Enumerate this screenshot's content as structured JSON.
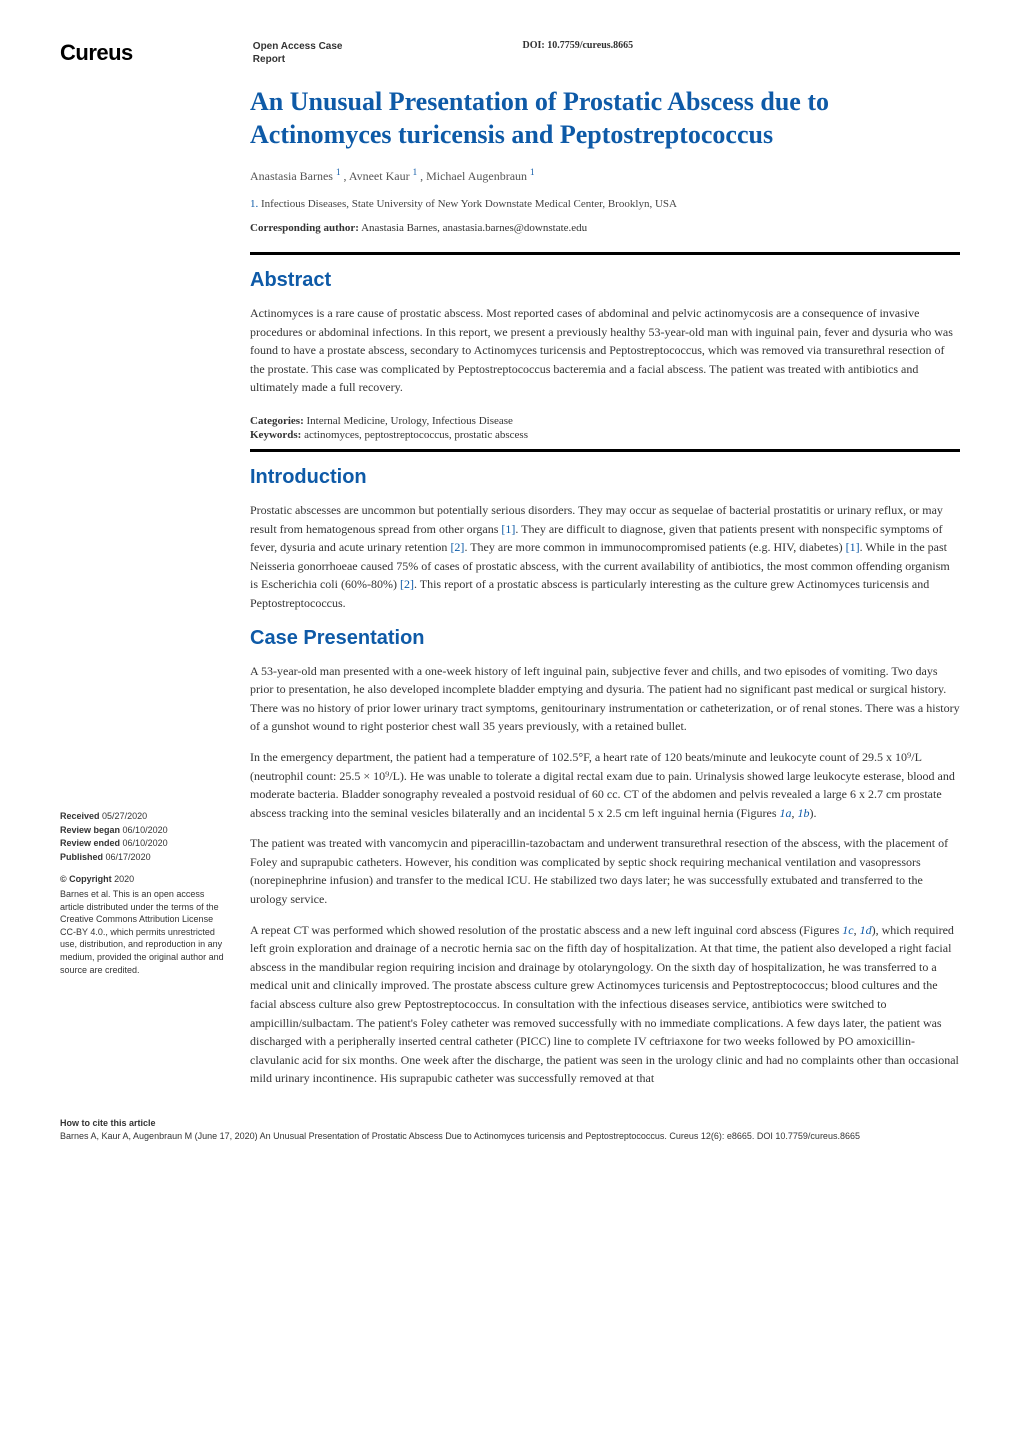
{
  "header": {
    "logo": "Cureus",
    "article_type_line1": "Open Access Case",
    "article_type_line2": "Report",
    "doi_label": "DOI:",
    "doi_value": "10.7759/cureus.8665"
  },
  "article": {
    "title": "An Unusual Presentation of Prostatic Abscess due to Actinomyces turicensis and Peptostreptococcus",
    "authors_html": "Anastasia Barnes ¹ , Avneet Kaur ¹ , Michael Augenbraun ¹",
    "author1": "Anastasia Barnes",
    "author2": "Avneet Kaur",
    "author3": "Michael Augenbraun",
    "sup": "1",
    "affiliation_num": "1.",
    "affiliation_text": "Infectious Diseases, State University of New York Downstate Medical Center, Brooklyn, USA",
    "corresponding_label": "Corresponding author:",
    "corresponding_value": "Anastasia Barnes, anastasia.barnes@downstate.edu"
  },
  "abstract": {
    "heading": "Abstract",
    "body": "Actinomyces is a rare cause of prostatic abscess. Most reported cases of abdominal and pelvic actinomycosis are a consequence of invasive procedures or abdominal infections. In this report, we present a previously healthy 53-year-old man with inguinal pain, fever and dysuria who was found to have a prostate abscess, secondary to Actinomyces turicensis and Peptostreptococcus, which was removed via transurethral resection of the prostate. This case was complicated by Peptostreptococcus bacteremia and a facial abscess. The patient was treated with antibiotics and ultimately made a full recovery."
  },
  "meta": {
    "categories_label": "Categories:",
    "categories_value": "Internal Medicine, Urology, Infectious Disease",
    "keywords_label": "Keywords:",
    "keywords_value": "actinomyces, peptostreptococcus, prostatic abscess"
  },
  "introduction": {
    "heading": "Introduction",
    "p1a": "Prostatic abscesses are uncommon but potentially serious disorders. They may occur as sequelae of bacterial prostatitis or urinary reflux, or may result from hematogenous spread from other organs ",
    "ref1": "[1]",
    "p1b": ". They are difficult to diagnose, given that patients present with nonspecific symptoms of fever, dysuria and acute urinary retention ",
    "ref2": "[2]",
    "p1c": ". They are more common in immunocompromised patients (e.g. HIV, diabetes)  ",
    "ref1b": "[1]",
    "p1d": ". While in the past Neisseria gonorrhoeae caused 75% of cases of prostatic abscess, with the current availability of antibiotics, the most common offending organism is Escherichia coli (60%-80%) ",
    "ref2b": "[2]",
    "p1e": ". This report of a prostatic abscess is particularly interesting as the culture grew Actinomyces turicensis and Peptostreptococcus."
  },
  "case": {
    "heading": "Case Presentation",
    "p1": "A 53-year-old man presented with a one-week history of left inguinal pain, subjective fever and chills, and two episodes of vomiting. Two days prior to presentation, he also developed incomplete bladder emptying and dysuria. The patient had no significant past medical or surgical history. There was no history of prior lower urinary tract symptoms, genitourinary instrumentation or catheterization, or of renal stones. There was a history of a gunshot wound to right posterior chest wall 35 years previously, with a retained bullet.",
    "p2a": "In the emergency department, the patient had a temperature of 102.5°F, a heart rate of 120 beats/minute and leukocyte count of 29.5 x 10⁹/L (neutrophil count: 25.5 × 10⁹/L). He was unable to tolerate a digital rectal exam due to pain. Urinalysis showed large leukocyte esterase, blood and moderate bacteria. Bladder sonography revealed a postvoid residual of 60 cc. CT of the abdomen and pelvis revealed a large 6 x 2.7 cm prostate abscess tracking into the seminal vesicles bilaterally and an incidental 5 x 2.5 cm left inguinal hernia (Figures ",
    "fig1a": "1a",
    "p2b": ", ",
    "fig1b": "1b",
    "p2c": ").",
    "p3": "The patient was treated with vancomycin and piperacillin-tazobactam and underwent transurethral resection of the abscess, with the placement of Foley and suprapubic catheters. However, his condition was complicated by septic shock requiring mechanical ventilation and vasopressors (norepinephrine infusion) and transfer to the medical ICU. He stabilized two days later; he was successfully extubated and transferred to the urology service.",
    "p4a": "A repeat CT was performed which showed resolution of the prostatic abscess and a new left inguinal cord abscess (Figures ",
    "fig1c": "1c",
    "p4b": ", ",
    "fig1d": "1d",
    "p4c": "), which required left groin exploration and drainage of a necrotic hernia sac on the fifth day of hospitalization. At that time, the patient also developed a right facial abscess in the mandibular region requiring incision and drainage by otolaryngology. On the sixth day of hospitalization, he was transferred to a medical unit and clinically improved. The prostate abscess culture grew Actinomyces turicensis and Peptostreptococcus; blood cultures and the facial abscess culture also grew Peptostreptococcus. In consultation with the infectious diseases service, antibiotics were switched to ampicillin/sulbactam. The patient's Foley catheter was removed successfully with no immediate complications. A few days later, the patient was discharged with a peripherally inserted central catheter (PICC) line to complete IV ceftriaxone for two weeks followed by PO amoxicillin-clavulanic acid for six months. One week after the discharge, the patient was seen in the urology clinic and had no complaints other than occasional mild urinary incontinence. His suprapubic catheter was successfully removed at that"
  },
  "sidebar": {
    "received_k": "Received",
    "received_v": "05/27/2020",
    "review_began_k": "Review began",
    "review_began_v": "06/10/2020",
    "review_ended_k": "Review ended",
    "review_ended_v": "06/10/2020",
    "published_k": "Published",
    "published_v": "06/17/2020",
    "copyright_h": "© Copyright",
    "copyright_year": "2020",
    "copyright_body": "Barnes et al. This is an open access article distributed under the terms of the Creative Commons Attribution License CC-BY 4.0., which permits unrestricted use, distribution, and reproduction in any medium, provided the original author and source are credited."
  },
  "footer": {
    "cite_heading": "How to cite this article",
    "cite_body": "Barnes A, Kaur A, Augenbraun M (June 17, 2020) An Unusual Presentation of Prostatic Abscess Due to Actinomyces turicensis and Peptostreptococcus. Cureus 12(6): e8665. DOI 10.7759/cureus.8665"
  },
  "colors": {
    "heading_blue": "#0e5aa7",
    "body_text": "#333333",
    "rule": "#000000",
    "background": "#ffffff"
  },
  "typography": {
    "title_fontsize": 26,
    "section_heading_fontsize": 20,
    "body_fontsize": 12,
    "sidebar_fontsize": 9,
    "footer_fontsize": 9
  }
}
